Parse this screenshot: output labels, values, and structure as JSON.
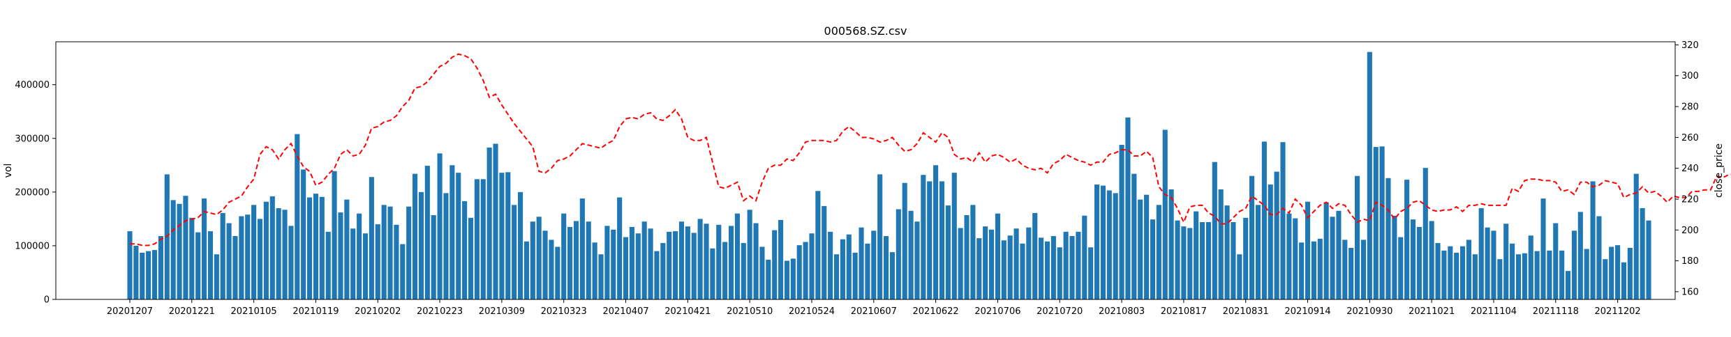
{
  "chart_data": {
    "type": "bar+line",
    "title": "000568.SZ.csv",
    "xlabel": "",
    "ylabel_left": "vol",
    "ylabel_right": "close_price",
    "ylim_left": [
      0,
      480000
    ],
    "ylim_right": [
      155,
      322
    ],
    "yticks_left": [
      {
        "v": 0,
        "label": "0"
      },
      {
        "v": 100000,
        "label": "100000"
      },
      {
        "v": 200000,
        "label": "200000"
      },
      {
        "v": 300000,
        "label": "300000"
      },
      {
        "v": 400000,
        "label": "400000"
      }
    ],
    "yticks_right": [
      {
        "v": 160,
        "label": "160"
      },
      {
        "v": 180,
        "label": "180"
      },
      {
        "v": 200,
        "label": "200"
      },
      {
        "v": 220,
        "label": "220"
      },
      {
        "v": 240,
        "label": "240"
      },
      {
        "v": 260,
        "label": "260"
      },
      {
        "v": 280,
        "label": "280"
      },
      {
        "v": 300,
        "label": "300"
      },
      {
        "v": 320,
        "label": "320"
      }
    ],
    "xtick_labels": [
      "20201207",
      "20201221",
      "20210105",
      "20210119",
      "20210202",
      "20210223",
      "20210309",
      "20210323",
      "20210407",
      "20210421",
      "20210510",
      "20210524",
      "20210607",
      "20210622",
      "20210706",
      "20210720",
      "20210803",
      "20210817",
      "20210831",
      "20210914",
      "20210930",
      "20211021",
      "20211104",
      "20211118",
      "20211202"
    ],
    "xtick_step": 10,
    "legend": false,
    "grid": false,
    "colors": {
      "bars": "#1f77b4",
      "line": "#ff0000"
    },
    "series": [
      {
        "type": "bar",
        "axis": "left",
        "values": [
          127000,
          100000,
          87000,
          90000,
          92000,
          118000,
          233000,
          185000,
          178000,
          193000,
          152000,
          125000,
          188000,
          127000,
          84000,
          161000,
          142000,
          118000,
          155000,
          158000,
          176000,
          150000,
          182000,
          192000,
          170000,
          167000,
          137000,
          308000,
          242000,
          190000,
          197000,
          191000,
          126000,
          239000,
          162000,
          186000,
          132000,
          160000,
          123000,
          228000,
          140000,
          176000,
          173000,
          139000,
          103000,
          173000,
          234000,
          200000,
          249000,
          157000,
          272000,
          198000,
          250000,
          236000,
          183000,
          152000,
          224000,
          224000,
          283000,
          290000,
          236000,
          237000,
          176000,
          200000,
          108000,
          145000,
          154000,
          128000,
          111000,
          98000,
          160000,
          135000,
          146000,
          188000,
          145000,
          106000,
          84000,
          137000,
          130000,
          190000,
          116000,
          135000,
          123000,
          145000,
          132000,
          90000,
          105000,
          126000,
          127000,
          145000,
          136000,
          124000,
          150000,
          141000,
          95000,
          139000,
          107000,
          137000,
          160000,
          105000,
          167000,
          142000,
          98000,
          74000,
          129000,
          148000,
          72000,
          76000,
          101000,
          107000,
          123000,
          202000,
          174000,
          126000,
          84000,
          112000,
          121000,
          87000,
          134000,
          104000,
          128000,
          233000,
          118000,
          88000,
          168000,
          217000,
          165000,
          145000,
          232000,
          220000,
          250000,
          220000,
          175000,
          236000,
          133000,
          157000,
          176000,
          114000,
          136000,
          130000,
          160000,
          110000,
          119000,
          132000,
          104000,
          134000,
          161000,
          115000,
          108000,
          118000,
          97000,
          126000,
          118000,
          126000,
          156000,
          97000,
          214000,
          212000,
          203000,
          198000,
          288000,
          339000,
          234000,
          186000,
          195000,
          149000,
          176000,
          316000,
          205000,
          147000,
          136000,
          133000,
          164000,
          144000,
          144000,
          256000,
          205000,
          175000,
          144000,
          84000,
          152000,
          230000,
          176000,
          294000,
          214000,
          238000,
          293000,
          160000,
          151000,
          106000,
          182000,
          108000,
          113000,
          181000,
          154000,
          165000,
          111000,
          96000,
          230000,
          111000,
          461000,
          284000,
          285000,
          226000,
          156000,
          116000,
          223000,
          149000,
          135000,
          245000,
          146000,
          105000,
          91000,
          99000,
          87000,
          99000,
          111000,
          84000,
          170000,
          134000,
          128000,
          75000,
          141000,
          104000,
          84000,
          86000,
          119000,
          90000,
          188000,
          91000,
          142000,
          91000,
          53000,
          128000,
          163000,
          94000,
          220000,
          155000,
          75000,
          98000,
          101000,
          69000,
          96000,
          234000,
          170000,
          147000
        ]
      },
      {
        "type": "line",
        "axis": "right",
        "style": "dashed",
        "values": [
          191,
          191,
          190,
          190,
          191,
          194,
          196,
          200,
          203,
          206,
          207,
          208,
          212,
          211,
          210,
          213,
          218,
          220,
          222,
          228,
          233,
          249,
          254,
          252,
          246,
          252,
          256,
          248,
          241,
          238,
          229,
          231,
          236,
          240,
          249,
          252,
          248,
          249,
          255,
          266,
          267,
          270,
          271,
          274,
          280,
          284,
          292,
          293,
          296,
          301,
          306,
          308,
          312,
          314,
          313,
          311,
          305,
          297,
          286,
          288,
          281,
          275,
          269,
          264,
          259,
          254,
          238,
          237,
          240,
          245,
          246,
          248,
          252,
          256,
          255,
          254,
          253,
          256,
          258,
          267,
          272,
          273,
          272,
          275,
          276,
          272,
          271,
          274,
          278,
          272,
          260,
          258,
          258,
          260,
          244,
          228,
          227,
          229,
          231,
          219,
          222,
          219,
          231,
          240,
          242,
          242,
          246,
          245,
          250,
          257,
          258,
          258,
          258,
          257,
          258,
          264,
          267,
          264,
          260,
          260,
          259,
          257,
          258,
          260,
          255,
          251,
          252,
          256,
          263,
          260,
          257,
          263,
          260,
          249,
          246,
          247,
          244,
          250,
          244,
          248,
          249,
          247,
          244,
          246,
          242,
          240,
          239,
          240,
          237,
          243,
          245,
          249,
          247,
          245,
          244,
          242,
          244,
          244,
          249,
          250,
          252,
          252,
          248,
          248,
          251,
          247,
          228,
          223,
          221,
          214,
          205,
          215,
          216,
          216,
          211,
          209,
          204,
          204,
          208,
          212,
          214,
          222,
          219,
          216,
          210,
          210,
          214,
          211,
          220,
          216,
          208,
          212,
          216,
          218,
          214,
          217,
          216,
          210,
          205,
          207,
          206,
          218,
          216,
          213,
          207,
          212,
          214,
          218,
          219,
          216,
          213,
          212,
          213,
          213,
          215,
          212,
          216,
          216,
          217,
          216,
          216,
          216,
          216,
          227,
          225,
          232,
          233,
          233,
          232,
          232,
          231,
          225,
          226,
          223,
          231,
          231,
          228,
          229,
          232,
          231,
          230,
          221,
          223,
          224,
          228,
          224,
          225,
          222,
          218,
          222,
          221,
          221,
          225,
          225,
          226,
          226,
          235,
          234,
          236,
          236,
          233,
          226,
          222
        ]
      }
    ]
  }
}
